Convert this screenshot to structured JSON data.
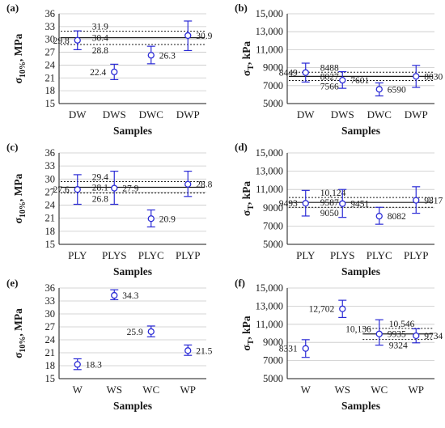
{
  "figure": {
    "colors": {
      "marker": "#2b2bd6",
      "axis": "#1a1a1a",
      "grid": "#c8c8c8",
      "mean_line": "#1a1a1a"
    }
  },
  "chart_data": [
    {
      "type": "scatter",
      "panel_label": "(a)",
      "xlabel": "Samples",
      "ylabel_main": "σ",
      "ylabel_sub": "10%",
      "ylabel_unit": ", MPa",
      "ylim": [
        15,
        36
      ],
      "yticks": [
        "15",
        "18",
        "21",
        "24",
        "27",
        "30",
        "33",
        "36"
      ],
      "ytick_values": [
        15,
        18,
        21,
        24,
        27,
        30,
        33,
        36
      ],
      "grid": true,
      "categories": [
        "DW",
        "DWS",
        "DWC",
        "DWP"
      ],
      "values": [
        29.8,
        22.4,
        26.3,
        30.9
      ],
      "err_low": [
        27.6,
        20.6,
        24.3,
        27.4
      ],
      "err_high": [
        32.0,
        24.2,
        28.4,
        34.3
      ],
      "point_labels": [
        "29.8",
        "22.4",
        "26.3",
        "30.9"
      ],
      "label_side": [
        "left",
        "left",
        "right",
        "right"
      ],
      "band": {
        "mean": 30.4,
        "low": 28.8,
        "high": 31.9,
        "mean_label": "30.4",
        "low_label": "28.8",
        "high_label": "31.9"
      }
    },
    {
      "type": "scatter",
      "panel_label": "(b)",
      "xlabel": "Samples",
      "ylabel_main": "σ",
      "ylabel_sub": "T",
      "ylabel_unit": ", kPa",
      "ylim": [
        5000,
        15000
      ],
      "yticks": [
        "5000",
        "7000",
        "9000",
        "11,000",
        "13,000",
        "15,000"
      ],
      "ytick_values": [
        5000,
        7000,
        9000,
        11000,
        13000,
        15000
      ],
      "grid": true,
      "categories": [
        "DW",
        "DWS",
        "DWC",
        "DWP"
      ],
      "values": [
        8449,
        7601,
        6590,
        8030
      ],
      "err_low": [
        7400,
        6700,
        5850,
        6800
      ],
      "err_high": [
        9500,
        8550,
        7300,
        9250
      ],
      "point_labels": [
        "8449",
        "7601",
        "6590",
        "8030"
      ],
      "label_side": [
        "left",
        "right",
        "right",
        "right"
      ],
      "band": {
        "mean": 8027,
        "low": 7566,
        "high": 8488,
        "mean_label": "8027",
        "low_label": "7566",
        "high_label": "8488"
      }
    },
    {
      "type": "scatter",
      "panel_label": "(c)",
      "xlabel": "Samples",
      "ylabel_main": "σ",
      "ylabel_sub": "10%",
      "ylabel_unit": ", MPa",
      "ylim": [
        15,
        36
      ],
      "yticks": [
        "15",
        "18",
        "21",
        "24",
        "27",
        "30",
        "33",
        "36"
      ],
      "ytick_values": [
        15,
        18,
        21,
        24,
        27,
        30,
        33,
        36
      ],
      "grid": true,
      "categories": [
        "PLY",
        "PLYS",
        "PLYC",
        "PLYP"
      ],
      "values": [
        27.6,
        27.9,
        20.9,
        28.8
      ],
      "err_low": [
        24.2,
        24.2,
        19.0,
        26.0
      ],
      "err_high": [
        31.0,
        31.8,
        22.9,
        31.8
      ],
      "point_labels": [
        "27.6",
        "27.9",
        "20.9",
        "28.8"
      ],
      "label_side": [
        "left",
        "right",
        "right",
        "right"
      ],
      "band": {
        "mean": 28.1,
        "low": 26.8,
        "high": 29.4,
        "mean_label": "28.1",
        "low_label": "26.8",
        "high_label": "29.4"
      }
    },
    {
      "type": "scatter",
      "panel_label": "(d)",
      "xlabel": "Samples",
      "ylabel_main": "σ",
      "ylabel_sub": "T",
      "ylabel_unit": ", kPa",
      "ylim": [
        5000,
        15000
      ],
      "yticks": [
        "5000",
        "7000",
        "9000",
        "11,000",
        "13,000",
        "15,000"
      ],
      "ytick_values": [
        5000,
        7000,
        9000,
        11000,
        13000,
        15000
      ],
      "grid": true,
      "categories": [
        "PLY",
        "PLYS",
        "PLYC",
        "PLYP"
      ],
      "values": [
        9493,
        9451,
        8082,
        9817
      ],
      "err_low": [
        8100,
        7950,
        7200,
        8400
      ],
      "err_high": [
        10900,
        11000,
        9050,
        11300
      ],
      "point_labels": [
        "9493",
        "9451",
        "8082",
        "9817"
      ],
      "label_side": [
        "left",
        "right",
        "right",
        "right"
      ],
      "band": {
        "mean": 9587,
        "low": 9050,
        "high": 10124,
        "mean_label": "9587",
        "low_label": "9050",
        "high_label": "10,124"
      }
    },
    {
      "type": "scatter",
      "panel_label": "(e)",
      "xlabel": "Samples",
      "ylabel_main": "σ",
      "ylabel_sub": "10%",
      "ylabel_unit": ", MPa",
      "ylim": [
        15,
        36
      ],
      "yticks": [
        "15",
        "18",
        "21",
        "24",
        "27",
        "30",
        "33",
        "36"
      ],
      "ytick_values": [
        15,
        18,
        21,
        24,
        27,
        30,
        33,
        36
      ],
      "grid": true,
      "categories": [
        "W",
        "WS",
        "WC",
        "WP"
      ],
      "values": [
        18.3,
        34.3,
        25.9,
        21.5
      ],
      "err_low": [
        17.1,
        33.3,
        24.7,
        20.4
      ],
      "err_high": [
        19.6,
        35.6,
        27.2,
        22.8
      ],
      "point_labels": [
        "18.3",
        "34.3",
        "25.9",
        "21.5"
      ],
      "label_side": [
        "right",
        "right",
        "left",
        "right"
      ],
      "band": null
    },
    {
      "type": "scatter",
      "panel_label": "(f)",
      "xlabel": "Samples",
      "ylabel_main": "σ",
      "ylabel_sub": "T",
      "ylabel_unit": ", kPa",
      "ylim": [
        5000,
        15000
      ],
      "yticks": [
        "5000",
        "7000",
        "9000",
        "11,000",
        "13,000",
        "15,000"
      ],
      "ytick_values": [
        5000,
        7000,
        9000,
        11000,
        13000,
        15000
      ],
      "grid": true,
      "categories": [
        "W",
        "WS",
        "WC",
        "WP"
      ],
      "values": [
        8331,
        12702,
        9935,
        9734
      ],
      "err_low": [
        7350,
        11750,
        8700,
        8950
      ],
      "err_high": [
        9300,
        13650,
        11500,
        10500
      ],
      "point_labels": [
        "8331",
        "12,702",
        "9935",
        "9734"
      ],
      "label_side": [
        "left",
        "left",
        "right",
        "right"
      ],
      "band": {
        "mean": 9935,
        "low": 9324,
        "high": 10546,
        "mean_label": "",
        "low_label": "9324",
        "high_label": "10,546",
        "left_label": "10,136",
        "span": [
          2,
          3
        ]
      }
    }
  ]
}
